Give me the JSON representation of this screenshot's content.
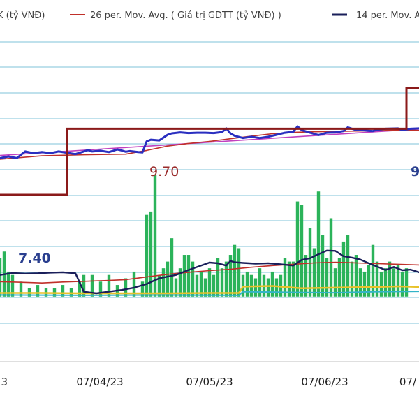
{
  "chart_data": {
    "type": "line",
    "legend": {
      "placement": "top",
      "entries": [
        {
          "label": "K (tỷ VNĐ)",
          "color": "#7a2a2a"
        },
        {
          "label": "26 per. Mov. Avg. ( Giá trị GDTT (tỷ VNĐ) )",
          "color": "#c0302a"
        },
        {
          "label": "14 per. Mov. Av",
          "color": "#1a1f5a"
        }
      ]
    },
    "x_ticks": [
      "…/23",
      "07/04/23",
      "07/05/23",
      "07/06/23",
      "07/"
    ],
    "annotations": [
      {
        "text": "9.70",
        "color": "#9a2b2b"
      },
      {
        "text": "7.40",
        "color": "#2a3f8f"
      },
      {
        "text": "9",
        "color": "#2a3f8f"
      }
    ],
    "grid": "horizontal",
    "colors": {
      "step": "#8b1a1a",
      "price": "#2a2fc0",
      "trend": "#c040c0",
      "ma26": "#c0302a",
      "ma14": "#1a1f5a",
      "volume": "#2bb35a",
      "yellow": "#e8c22a",
      "cyan": "#32b4c8",
      "grid": "#7fc3d8"
    },
    "series": {
      "step": [
        [
          0,
          50
        ],
        [
          64,
          50
        ],
        [
          64,
          49
        ],
        [
          95,
          49
        ],
        [
          95,
          31
        ],
        [
          98,
          31
        ],
        [
          98,
          31
        ],
        [
          100,
          31
        ]
      ],
      "price": [
        [
          0,
          39
        ],
        [
          2,
          38.5
        ],
        [
          4,
          39
        ],
        [
          6,
          37
        ],
        [
          8,
          37.5
        ],
        [
          10,
          37.2
        ],
        [
          12,
          37.5
        ],
        [
          14,
          37
        ],
        [
          16,
          37.4
        ],
        [
          18,
          37.8
        ],
        [
          20,
          37
        ],
        [
          21,
          36.6
        ],
        [
          22,
          37
        ],
        [
          24,
          36.8
        ],
        [
          26,
          37.2
        ],
        [
          28,
          36.4
        ],
        [
          29,
          36.7
        ],
        [
          30,
          37.1
        ],
        [
          31,
          36.9
        ],
        [
          33,
          37.2
        ],
        [
          34,
          37.3
        ],
        [
          35,
          34
        ],
        [
          36,
          33.5
        ],
        [
          38,
          33.7
        ],
        [
          40,
          32
        ],
        [
          41,
          31.6
        ],
        [
          43,
          31.3
        ],
        [
          45,
          31.5
        ],
        [
          47,
          31.4
        ],
        [
          49,
          31.4
        ],
        [
          51,
          31.5
        ],
        [
          53,
          31.2
        ],
        [
          54,
          30.1
        ],
        [
          55,
          31.6
        ],
        [
          56,
          32.3
        ],
        [
          58,
          33
        ],
        [
          60,
          32.6
        ],
        [
          62,
          33
        ],
        [
          64,
          32.6
        ],
        [
          66,
          32
        ],
        [
          68,
          31.4
        ],
        [
          70,
          31.1
        ],
        [
          71,
          29.5
        ],
        [
          72,
          30.6
        ],
        [
          74,
          31.4
        ],
        [
          76,
          32.1
        ],
        [
          78,
          31.4
        ],
        [
          80,
          31.3
        ],
        [
          82,
          30.9
        ],
        [
          83,
          29.8
        ],
        [
          85,
          30.6
        ],
        [
          87,
          30.7
        ],
        [
          89,
          30.9
        ],
        [
          90,
          30.5
        ],
        [
          92,
          30.2
        ],
        [
          95,
          30.1
        ],
        [
          96,
          30.6
        ],
        [
          98,
          30.2
        ],
        [
          100,
          30.1
        ]
      ],
      "trend": [
        [
          0,
          38.2
        ],
        [
          100,
          30.3
        ]
      ],
      "ma26": [
        [
          0,
          39.3
        ],
        [
          10,
          38.3
        ],
        [
          20,
          38
        ],
        [
          30,
          37.8
        ],
        [
          35,
          36.7
        ],
        [
          40,
          35.4
        ],
        [
          45,
          34.6
        ],
        [
          50,
          34
        ],
        [
          55,
          33.2
        ],
        [
          60,
          32.4
        ],
        [
          65,
          31.7
        ],
        [
          70,
          31.3
        ],
        [
          75,
          31.1
        ],
        [
          80,
          31
        ],
        [
          85,
          30.9
        ],
        [
          90,
          30.8
        ],
        [
          95,
          30.6
        ],
        [
          100,
          30.7
        ]
      ],
      "ma14": [
        [
          0,
          74
        ],
        [
          3,
          73.4
        ],
        [
          6,
          73.6
        ],
        [
          9,
          73.5
        ],
        [
          12,
          73.3
        ],
        [
          15,
          73.2
        ],
        [
          18,
          73.5
        ],
        [
          20,
          79
        ],
        [
          23,
          79.5
        ],
        [
          26,
          79
        ],
        [
          29,
          78.5
        ],
        [
          32,
          77.8
        ],
        [
          35,
          76.7
        ],
        [
          38,
          75
        ],
        [
          42,
          74
        ],
        [
          45,
          72.5
        ],
        [
          48,
          71.2
        ],
        [
          50,
          70.3
        ],
        [
          52,
          70.5
        ],
        [
          54,
          71.2
        ],
        [
          55,
          69.8
        ],
        [
          56,
          70.2
        ],
        [
          58,
          70.4
        ],
        [
          61,
          70.6
        ],
        [
          64,
          70.5
        ],
        [
          67,
          70.8
        ],
        [
          70,
          71.2
        ],
        [
          72,
          69.5
        ],
        [
          74,
          69
        ],
        [
          76,
          67.8
        ],
        [
          78,
          66.7
        ],
        [
          80,
          66.8
        ],
        [
          82,
          68.4
        ],
        [
          84,
          68.8
        ],
        [
          86,
          69.4
        ],
        [
          88,
          70.5
        ],
        [
          90,
          71.5
        ],
        [
          92,
          72.5
        ],
        [
          94,
          71.6
        ],
        [
          96,
          72.6
        ],
        [
          98,
          72.4
        ],
        [
          100,
          73.2
        ]
      ],
      "ma26_low": [
        [
          0,
          76
        ],
        [
          5,
          76.2
        ],
        [
          10,
          76.4
        ],
        [
          15,
          76.1
        ],
        [
          20,
          75.9
        ],
        [
          25,
          75.7
        ],
        [
          30,
          75.4
        ],
        [
          35,
          74.6
        ],
        [
          40,
          73.8
        ],
        [
          45,
          73.2
        ],
        [
          50,
          72.7
        ],
        [
          55,
          72.3
        ],
        [
          60,
          71.7
        ],
        [
          65,
          71.2
        ],
        [
          70,
          70.8
        ],
        [
          75,
          70.4
        ],
        [
          80,
          70.2
        ],
        [
          85,
          70.4
        ],
        [
          90,
          70.6
        ],
        [
          95,
          70.8
        ],
        [
          100,
          71
        ]
      ],
      "yellow": [
        [
          0,
          79.4
        ],
        [
          10,
          79.4
        ],
        [
          20,
          79.5
        ],
        [
          30,
          79.5
        ],
        [
          40,
          79.5
        ],
        [
          50,
          79.4
        ],
        [
          57,
          79.4
        ],
        [
          58,
          77.5
        ],
        [
          65,
          77.3
        ],
        [
          70,
          77.8
        ],
        [
          72,
          78
        ],
        [
          80,
          77.8
        ],
        [
          90,
          77.6
        ],
        [
          95,
          77.4
        ],
        [
          100,
          77.6
        ]
      ],
      "cyan": [
        [
          0,
          80
        ],
        [
          20,
          80.1
        ],
        [
          40,
          80
        ],
        [
          57,
          80.1
        ],
        [
          58,
          79
        ],
        [
          70,
          79.2
        ],
        [
          80,
          79.3
        ],
        [
          90,
          79
        ],
        [
          100,
          78.9
        ]
      ]
    },
    "volume": [
      [
        0,
        69
      ],
      [
        1,
        67
      ],
      [
        2,
        73
      ],
      [
        3,
        74
      ],
      [
        5,
        76
      ],
      [
        7,
        78
      ],
      [
        9,
        77
      ],
      [
        11,
        78
      ],
      [
        13,
        78
      ],
      [
        15,
        77
      ],
      [
        17,
        78
      ],
      [
        19,
        76
      ],
      [
        20,
        74
      ],
      [
        22,
        74
      ],
      [
        24,
        76
      ],
      [
        26,
        74
      ],
      [
        28,
        77
      ],
      [
        30,
        75
      ],
      [
        32,
        73
      ],
      [
        34,
        76
      ],
      [
        35,
        56
      ],
      [
        36,
        55
      ],
      [
        37,
        44
      ],
      [
        38,
        74
      ],
      [
        39,
        72
      ],
      [
        40,
        70
      ],
      [
        41,
        63
      ],
      [
        42,
        75
      ],
      [
        43,
        72
      ],
      [
        44,
        68
      ],
      [
        45,
        68
      ],
      [
        46,
        70
      ],
      [
        47,
        74
      ],
      [
        48,
        73
      ],
      [
        49,
        75
      ],
      [
        50,
        72
      ],
      [
        51,
        74
      ],
      [
        52,
        69
      ],
      [
        53,
        72
      ],
      [
        54,
        70
      ],
      [
        55,
        68
      ],
      [
        56,
        65
      ],
      [
        57,
        66
      ],
      [
        58,
        74
      ],
      [
        59,
        73
      ],
      [
        60,
        74
      ],
      [
        61,
        75
      ],
      [
        62,
        72
      ],
      [
        63,
        74
      ],
      [
        64,
        75
      ],
      [
        65,
        73
      ],
      [
        66,
        75
      ],
      [
        67,
        74
      ],
      [
        68,
        69
      ],
      [
        69,
        70
      ],
      [
        70,
        70
      ],
      [
        71,
        52
      ],
      [
        72,
        53
      ],
      [
        73,
        68
      ],
      [
        74,
        60
      ],
      [
        75,
        66
      ],
      [
        76,
        49
      ],
      [
        77,
        62
      ],
      [
        78,
        69
      ],
      [
        79,
        57
      ],
      [
        80,
        72
      ],
      [
        81,
        69
      ],
      [
        82,
        64
      ],
      [
        83,
        62
      ],
      [
        84,
        70
      ],
      [
        85,
        68
      ],
      [
        86,
        72
      ],
      [
        87,
        73
      ],
      [
        88,
        71
      ],
      [
        89,
        65
      ],
      [
        90,
        70
      ],
      [
        91,
        73
      ],
      [
        92,
        72
      ],
      [
        93,
        70
      ],
      [
        94,
        72
      ],
      [
        95,
        71
      ],
      [
        96,
        73
      ],
      [
        97,
        72
      ]
    ]
  }
}
